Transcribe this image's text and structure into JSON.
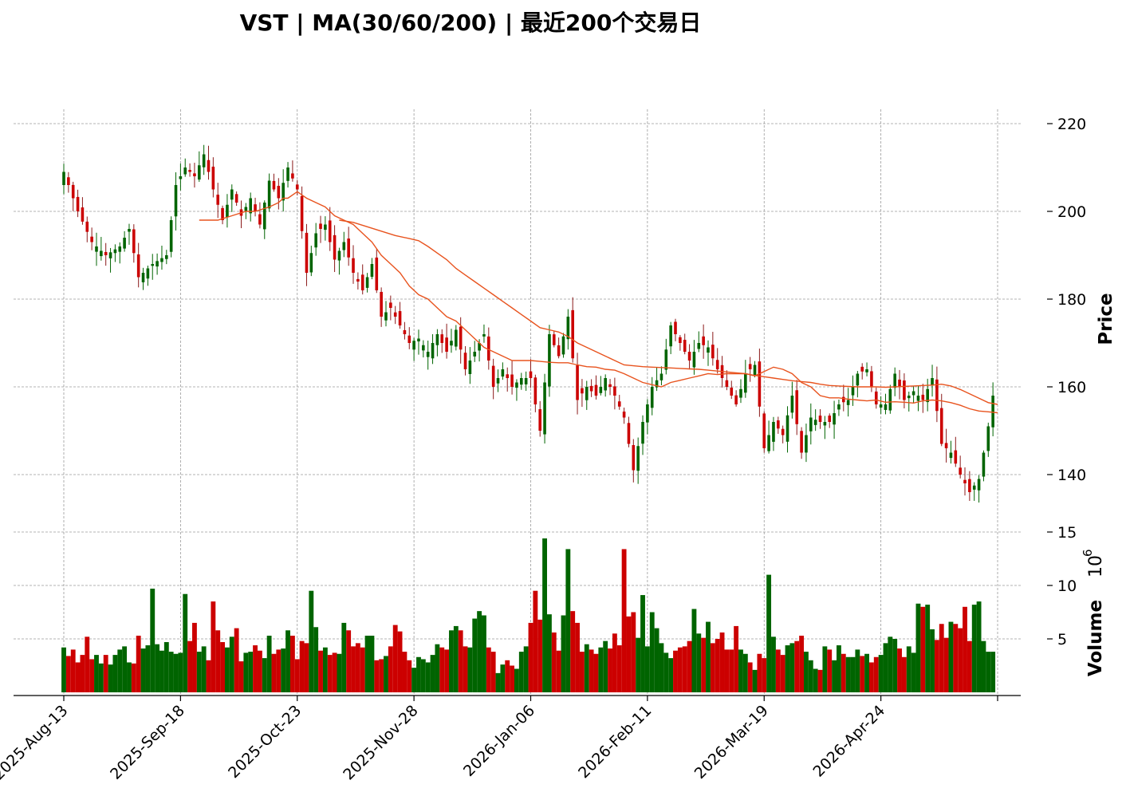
{
  "title": "VST  |  MA(30/60/200)  |  最近200个交易日",
  "chart_data": {
    "type": "candlestick",
    "symbol": "VST",
    "moving_averages": [
      30,
      60,
      200
    ],
    "colors": {
      "up": "#006400",
      "down": "#cc0000",
      "up_wick": "#006400",
      "down_wick": "#8b1a1a",
      "ma": "#e8531e"
    },
    "price_axis": {
      "label": "Price",
      "ylim": [
        127,
        223
      ],
      "ticks": [
        140,
        160,
        180,
        200,
        220
      ]
    },
    "volume_axis": {
      "label": "Volume",
      "exponent_label": "10",
      "exponent": "6",
      "ylim": [
        0,
        15.3
      ],
      "ticks": [
        5,
        10,
        15
      ]
    },
    "x_tick_labels": [
      "2025-Aug-13",
      "2025-Sep-18",
      "2025-Oct-23",
      "2025-Nov-28",
      "2026-Jan-06",
      "2026-Feb-11",
      "2026-Mar-19",
      "2026-Apr-24"
    ],
    "x_tick_indices": [
      0,
      25,
      50,
      75,
      100,
      125,
      150,
      175
    ],
    "anchors": [
      [
        0,
        209
      ],
      [
        3,
        200
      ],
      [
        6,
        193
      ],
      [
        9,
        190
      ],
      [
        12,
        192
      ],
      [
        14,
        196
      ],
      [
        16,
        185
      ],
      [
        19,
        188
      ],
      [
        22,
        190
      ],
      [
        24,
        206
      ],
      [
        26,
        210
      ],
      [
        28,
        208
      ],
      [
        30,
        213
      ],
      [
        32,
        205
      ],
      [
        34,
        198
      ],
      [
        36,
        205
      ],
      [
        38,
        199
      ],
      [
        40,
        203
      ],
      [
        42,
        197
      ],
      [
        44,
        207
      ],
      [
        46,
        203
      ],
      [
        48,
        210
      ],
      [
        50,
        205
      ],
      [
        52,
        186
      ],
      [
        54,
        195
      ],
      [
        56,
        197
      ],
      [
        58,
        189
      ],
      [
        60,
        193
      ],
      [
        62,
        186
      ],
      [
        64,
        182
      ],
      [
        66,
        188
      ],
      [
        68,
        176
      ],
      [
        70,
        178
      ],
      [
        72,
        174
      ],
      [
        74,
        170
      ],
      [
        76,
        171
      ],
      [
        78,
        168
      ],
      [
        80,
        172
      ],
      [
        82,
        168
      ],
      [
        84,
        173
      ],
      [
        86,
        164
      ],
      [
        88,
        168
      ],
      [
        90,
        172
      ],
      [
        92,
        160
      ],
      [
        94,
        164
      ],
      [
        96,
        160
      ],
      [
        98,
        162
      ],
      [
        100,
        162
      ],
      [
        102,
        150
      ],
      [
        104,
        172
      ],
      [
        106,
        167
      ],
      [
        108,
        176
      ],
      [
        110,
        157
      ],
      [
        112,
        160
      ],
      [
        114,
        158
      ],
      [
        116,
        162
      ],
      [
        118,
        158
      ],
      [
        120,
        153
      ],
      [
        122,
        141
      ],
      [
        124,
        152
      ],
      [
        126,
        160
      ],
      [
        128,
        163
      ],
      [
        130,
        174
      ],
      [
        132,
        170
      ],
      [
        134,
        166
      ],
      [
        136,
        170
      ],
      [
        138,
        169
      ],
      [
        140,
        164
      ],
      [
        142,
        160
      ],
      [
        144,
        156
      ],
      [
        146,
        163
      ],
      [
        148,
        165
      ],
      [
        150,
        146
      ],
      [
        152,
        152
      ],
      [
        154,
        149
      ],
      [
        156,
        158
      ],
      [
        158,
        145
      ],
      [
        160,
        153
      ],
      [
        162,
        152
      ],
      [
        164,
        152
      ],
      [
        166,
        156
      ],
      [
        168,
        157
      ],
      [
        170,
        163
      ],
      [
        172,
        164
      ],
      [
        174,
        156
      ],
      [
        176,
        156
      ],
      [
        178,
        163
      ],
      [
        180,
        157
      ],
      [
        182,
        159
      ],
      [
        184,
        157
      ],
      [
        186,
        162
      ],
      [
        188,
        147
      ],
      [
        190,
        145
      ],
      [
        192,
        140
      ],
      [
        194,
        136
      ],
      [
        196,
        139
      ],
      [
        198,
        151
      ],
      [
        199,
        158
      ],
      [
        200,
        160
      ]
    ],
    "volume_values": [
      4.2,
      3.4,
      4.0,
      2.8,
      3.5,
      5.2,
      3.1,
      3.5,
      2.7,
      3.5,
      2.6,
      3.5,
      4.0,
      4.3,
      2.8,
      2.7,
      5.3,
      4.1,
      4.4,
      9.7,
      4.5,
      3.9,
      4.7,
      3.8,
      3.6,
      3.7,
      9.2,
      4.8,
      6.5,
      3.8,
      4.3,
      3.0,
      8.5,
      5.8,
      4.7,
      4.2,
      5.2,
      6.0,
      2.9,
      3.7,
      3.8,
      4.4,
      3.9,
      3.2,
      5.3,
      3.6,
      4.0,
      4.1,
      5.8,
      5.3,
      3.1,
      4.8,
      4.6,
      9.5,
      6.1,
      3.9,
      4.2,
      3.5,
      3.7,
      3.6,
      6.5,
      5.8,
      4.3,
      4.6,
      4.2,
      5.3,
      5.3,
      3.0,
      3.1,
      3.4,
      4.3,
      6.3,
      5.7,
      3.8,
      3.0,
      2.3,
      3.3,
      3.1,
      2.8,
      3.5,
      4.5,
      4.2,
      4.0,
      5.8,
      6.2,
      5.8,
      4.3,
      4.2,
      6.9,
      7.6,
      7.2,
      4.2,
      3.8,
      1.8,
      2.6,
      3.0,
      2.5,
      2.2,
      3.8,
      4.3,
      6.5,
      9.5,
      6.8,
      14.4,
      7.3,
      5.6,
      3.9,
      7.2,
      13.4,
      7.6,
      6.5,
      3.8,
      4.5,
      4.0,
      3.6,
      4.2,
      4.8,
      4.1,
      5.5,
      4.4,
      13.4,
      7.1,
      7.5,
      5.1,
      9.1,
      4.3,
      7.5,
      6.0,
      4.6,
      3.7,
      3.2,
      3.9,
      4.2,
      4.3,
      4.8,
      7.8,
      5.5,
      5.1,
      6.6,
      4.6,
      5.0,
      5.6,
      4.0,
      4.0,
      6.2,
      4.0,
      3.6,
      2.8,
      2.1,
      3.6,
      3.2,
      11.0,
      5.2,
      4.0,
      3.5,
      4.4,
      4.6,
      4.8,
      5.3,
      3.8,
      3.0,
      2.2,
      2.1,
      4.3,
      4.0,
      3.0,
      4.4,
      3.6,
      3.3,
      3.3,
      4.0,
      3.4,
      3.6,
      2.8,
      3.3,
      3.5,
      4.6,
      5.2,
      5.0,
      4.1,
      3.3,
      4.3,
      3.7,
      8.3,
      8.0,
      8.2,
      5.9,
      4.9,
      6.4,
      5.1,
      6.6,
      6.4,
      6.0,
      8.0,
      4.8,
      8.2,
      8.5,
      4.8,
      3.8,
      3.8
    ],
    "ma_short_points": [
      [
        29,
        198
      ],
      [
        31,
        198
      ],
      [
        33,
        198
      ],
      [
        36,
        199
      ],
      [
        39,
        200
      ],
      [
        41,
        200
      ],
      [
        44,
        201
      ],
      [
        46,
        202
      ],
      [
        47,
        203
      ],
      [
        48,
        203
      ],
      [
        50,
        204.5
      ],
      [
        52,
        203
      ],
      [
        54,
        202
      ],
      [
        56,
        201
      ],
      [
        58,
        199
      ],
      [
        60,
        198
      ],
      [
        62,
        197
      ],
      [
        64,
        195
      ],
      [
        66,
        193
      ],
      [
        68,
        190
      ],
      [
        70,
        188
      ],
      [
        72,
        186
      ],
      [
        74,
        183
      ],
      [
        76,
        181
      ],
      [
        78,
        180
      ],
      [
        80,
        178
      ],
      [
        82,
        176
      ],
      [
        84,
        175
      ],
      [
        86,
        173
      ],
      [
        88,
        171
      ],
      [
        90,
        169
      ],
      [
        92,
        168
      ],
      [
        94,
        167
      ],
      [
        96,
        166
      ],
      [
        98,
        166
      ],
      [
        100,
        166
      ],
      [
        102,
        165.8
      ],
      [
        104,
        165.6
      ],
      [
        106,
        165.5
      ],
      [
        108,
        165.5
      ],
      [
        110,
        165
      ],
      [
        112,
        164.6
      ],
      [
        114,
        164.5
      ],
      [
        116,
        164
      ],
      [
        118,
        163.8
      ],
      [
        120,
        163
      ],
      [
        122,
        162
      ],
      [
        124,
        161
      ],
      [
        126,
        160.5
      ],
      [
        128,
        160
      ],
      [
        130,
        161
      ],
      [
        132,
        161.5
      ],
      [
        134,
        162
      ],
      [
        136,
        162.5
      ],
      [
        138,
        163
      ],
      [
        140,
        162.8
      ],
      [
        142,
        163
      ],
      [
        144,
        163
      ],
      [
        146,
        163
      ],
      [
        148,
        162.5
      ],
      [
        150,
        163.5
      ],
      [
        152,
        164.5
      ],
      [
        154,
        164
      ],
      [
        156,
        163
      ],
      [
        158,
        161
      ],
      [
        160,
        160
      ],
      [
        162,
        158
      ],
      [
        164,
        157.5
      ],
      [
        166,
        157.5
      ],
      [
        168,
        157.2
      ],
      [
        170,
        157
      ],
      [
        172,
        156.8
      ],
      [
        174,
        157
      ],
      [
        176,
        156.5
      ],
      [
        178,
        156.6
      ],
      [
        180,
        156.5
      ],
      [
        182,
        156.3
      ],
      [
        184,
        156.8
      ],
      [
        186,
        157
      ],
      [
        188,
        156.8
      ],
      [
        190,
        156.4
      ],
      [
        192,
        155.8
      ],
      [
        194,
        155
      ],
      [
        196,
        154.5
      ],
      [
        198,
        154.3
      ],
      [
        200,
        154.1
      ]
    ],
    "ma_long_points": [
      [
        59,
        198
      ],
      [
        62,
        197.5
      ],
      [
        65,
        196.5
      ],
      [
        68,
        195.5
      ],
      [
        71,
        194.5
      ],
      [
        74,
        193.8
      ],
      [
        76,
        193.3
      ],
      [
        78,
        192
      ],
      [
        80,
        190.5
      ],
      [
        82,
        189
      ],
      [
        84,
        187
      ],
      [
        86,
        185.5
      ],
      [
        88,
        184
      ],
      [
        90,
        182.5
      ],
      [
        92,
        181
      ],
      [
        94,
        179.5
      ],
      [
        96,
        178
      ],
      [
        98,
        176.5
      ],
      [
        100,
        175
      ],
      [
        102,
        173.5
      ],
      [
        104,
        173
      ],
      [
        106,
        172.5
      ],
      [
        108,
        171.5
      ],
      [
        110,
        170
      ],
      [
        112,
        169
      ],
      [
        114,
        168
      ],
      [
        116,
        167
      ],
      [
        118,
        166
      ],
      [
        120,
        165
      ],
      [
        122,
        164.8
      ],
      [
        124,
        164.6
      ],
      [
        126,
        164.5
      ],
      [
        128,
        164.4
      ],
      [
        130,
        164.3
      ],
      [
        132,
        164.2
      ],
      [
        134,
        164.1
      ],
      [
        136,
        164
      ],
      [
        138,
        163.8
      ],
      [
        140,
        163.6
      ],
      [
        142,
        163.4
      ],
      [
        144,
        163.2
      ],
      [
        146,
        163
      ],
      [
        148,
        162.6
      ],
      [
        150,
        162.3
      ],
      [
        152,
        162
      ],
      [
        154,
        161.7
      ],
      [
        156,
        161.4
      ],
      [
        158,
        161.2
      ],
      [
        160,
        161
      ],
      [
        162,
        160.6
      ],
      [
        164,
        160.3
      ],
      [
        166,
        160.2
      ],
      [
        168,
        160.1
      ],
      [
        170,
        160
      ],
      [
        172,
        160
      ],
      [
        174,
        160
      ],
      [
        176,
        159.9
      ],
      [
        178,
        160
      ],
      [
        180,
        160.1
      ],
      [
        182,
        160.2
      ],
      [
        184,
        160.3
      ],
      [
        186,
        160.4
      ],
      [
        188,
        160.6
      ],
      [
        190,
        160.2
      ],
      [
        192,
        159.4
      ],
      [
        194,
        158.4
      ],
      [
        196,
        157.4
      ],
      [
        198,
        156.4
      ],
      [
        200,
        156
      ]
    ]
  }
}
